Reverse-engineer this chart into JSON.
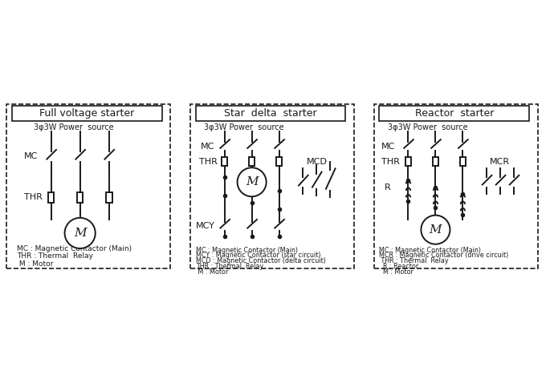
{
  "bg_color": "#ffffff",
  "line_color": "#1a1a1a",
  "panel_titles": [
    "Full voltage starter",
    "Star  delta  starter",
    "Reactor  starter"
  ],
  "legend1": [
    "MC : Magnetic Contactor (Main)",
    "THR : Thermal  Relay",
    " M : Motor"
  ],
  "legend2": [
    "MC : Magnetic Contactor (Main)",
    "MCY : Magnetic Contactor (star circuit)",
    "MCD : Magnetic Contactor (delta circuit)",
    "THR : Thermal  Relay",
    " M : Motor"
  ],
  "legend3": [
    "MC : Magnetic Contactor (Main)",
    "MCR : Magnetic Contactor (drive circuit)",
    " THR : Thermal  Relay",
    "  R : Reactor",
    "  M : Motor"
  ],
  "source_label": "3φ3W Power  source",
  "figsize": [
    6.9,
    4.63
  ],
  "dpi": 100
}
